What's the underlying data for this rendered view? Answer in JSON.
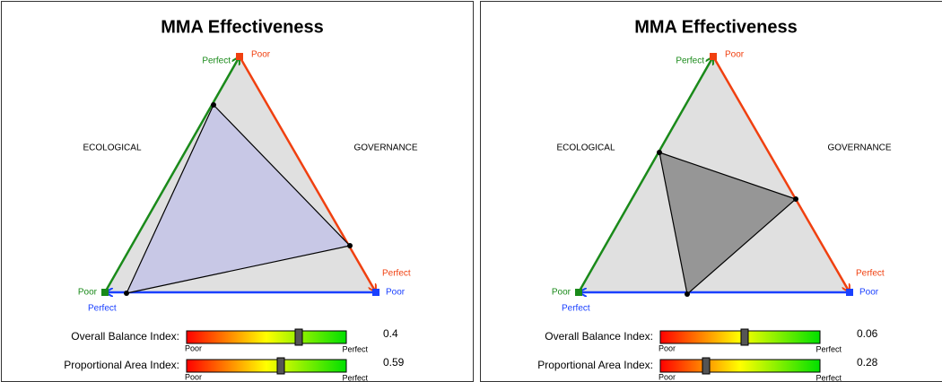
{
  "panels": [
    {
      "title": "MMA Effectiveness",
      "left_axis": "ECOLOGICAL",
      "right_axis": "GOVERNANCE",
      "top_perfect": "Perfect",
      "top_poor": "Poor",
      "right_perfect": "Perfect",
      "right_poor": "Poor",
      "left_poor": "Poor",
      "left_perfect": "Perfect",
      "indices": [
        {
          "label": "Overall Balance Index:",
          "low": "Poor",
          "high": "Perfect",
          "value": 0.4
        },
        {
          "label": "Proportional Area Index:",
          "low": "Poor",
          "high": "Perfect",
          "value": 0.59
        }
      ]
    },
    {
      "title": "MMA Effectiveness",
      "left_axis": "ECOLOGICAL",
      "right_axis": "GOVERNANCE",
      "top_perfect": "Perfect",
      "top_poor": "Poor",
      "right_perfect": "Perfect",
      "right_poor": "Poor",
      "left_poor": "Poor",
      "left_perfect": "Perfect",
      "indices": [
        {
          "label": "Overall Balance Index:",
          "low": "Poor",
          "high": "Perfect",
          "value": 0.06
        },
        {
          "label": "Proportional Area Index:",
          "low": "Poor",
          "high": "Perfect",
          "value": 0.28
        }
      ]
    }
  ]
}
